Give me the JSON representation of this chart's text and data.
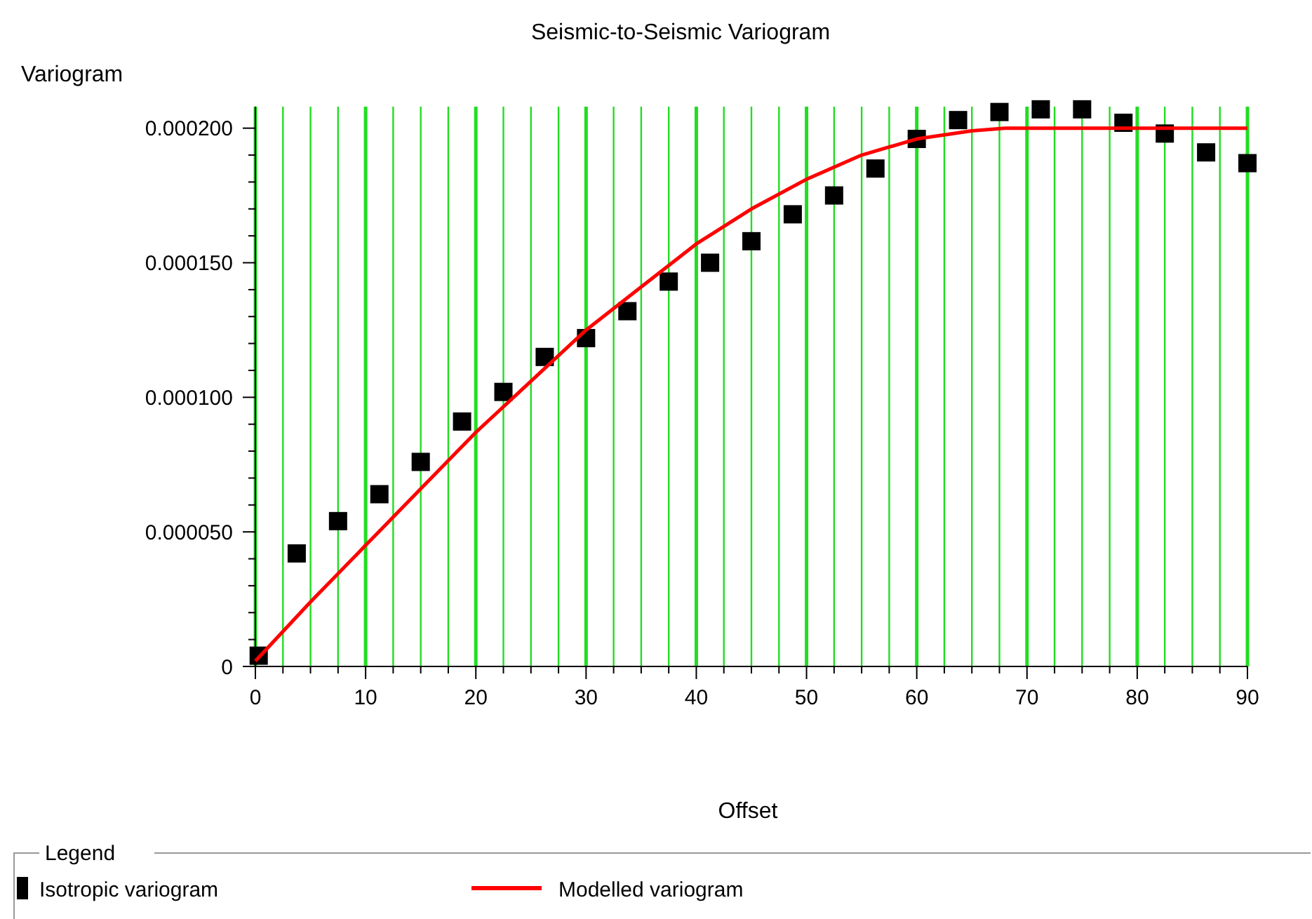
{
  "chart_data": {
    "type": "scatter",
    "title": "Seismic-to-Seismic Variogram",
    "xlabel": "Offset",
    "ylabel": "Variogram",
    "legend_title": "Legend",
    "legend": "bottom",
    "grid": "x",
    "xlim": [
      0,
      90
    ],
    "xticks": [
      0,
      {
        "value": 2.5,
        "label": null
      },
      {
        "value": 5,
        "label": null
      },
      {
        "value": 7.5,
        "label": null
      },
      10,
      {
        "value": 12.5,
        "label": null
      },
      {
        "value": 15,
        "label": null
      },
      {
        "value": 17.5,
        "label": null
      },
      20,
      {
        "value": 22.5,
        "label": null
      },
      {
        "value": 25,
        "label": null
      },
      {
        "value": 27.5,
        "label": null
      },
      30,
      {
        "value": 32.5,
        "label": null
      },
      {
        "value": 35,
        "label": null
      },
      {
        "value": 37.5,
        "label": null
      },
      40,
      {
        "value": 42.5,
        "label": null
      },
      {
        "value": 45,
        "label": null
      },
      {
        "value": 47.5,
        "label": null
      },
      50,
      {
        "value": 52.5,
        "label": null
      },
      {
        "value": 55,
        "label": null
      },
      {
        "value": 57.5,
        "label": null
      },
      60,
      {
        "value": 62.5,
        "label": null
      },
      {
        "value": 65,
        "label": null
      },
      {
        "value": 67.5,
        "label": null
      },
      70,
      {
        "value": 72.5,
        "label": null
      },
      {
        "value": 75,
        "label": null
      },
      {
        "value": 77.5,
        "label": null
      },
      80,
      {
        "value": 82.5,
        "label": null
      },
      {
        "value": 85,
        "label": null
      },
      {
        "value": 87.5,
        "label": null
      },
      90
    ],
    "ylim": [
      0,
      0.000208
    ],
    "yticks": [
      0,
      {
        "value": 1e-05,
        "label": null
      },
      {
        "value": 2e-05,
        "label": null
      },
      {
        "value": 3e-05,
        "label": null
      },
      {
        "value": 4e-05,
        "label": null
      },
      {
        "value": 5e-05,
        "label": "0.000050"
      },
      {
        "value": 6e-05,
        "label": null
      },
      {
        "value": 7e-05,
        "label": null
      },
      {
        "value": 8e-05,
        "label": null
      },
      {
        "value": 9e-05,
        "label": null
      },
      {
        "value": 0.0001,
        "label": "0.000100"
      },
      {
        "value": 0.00011,
        "label": null
      },
      {
        "value": 0.00012,
        "label": null
      },
      {
        "value": 0.00013,
        "label": null
      },
      {
        "value": 0.00014,
        "label": null
      },
      {
        "value": 0.00015,
        "label": "0.000150"
      },
      {
        "value": 0.00016,
        "label": null
      },
      {
        "value": 0.00017,
        "label": null
      },
      {
        "value": 0.00018,
        "label": null
      },
      {
        "value": 0.00019,
        "label": null
      },
      {
        "value": 0.0002,
        "label": "0.000200"
      }
    ],
    "series": [
      {
        "name": "Isotropic variogram",
        "marker": "square",
        "color": "#000000",
        "x": [
          0.3,
          3.75,
          7.5,
          11.25,
          15,
          18.75,
          22.5,
          26.25,
          30,
          33.75,
          37.5,
          41.25,
          45,
          48.75,
          52.5,
          56.25,
          60,
          63.75,
          67.5,
          71.25,
          75,
          78.75,
          82.5,
          86.25,
          90
        ],
        "values": [
          4e-06,
          4.2e-05,
          5.4e-05,
          6.4e-05,
          7.6e-05,
          9.1e-05,
          0.000102,
          0.000115,
          0.000122,
          0.000132,
          0.000143,
          0.00015,
          0.000158,
          0.000168,
          0.000175,
          0.000185,
          0.000196,
          0.000203,
          0.000206,
          0.000207,
          0.000207,
          0.000202,
          0.000198,
          0.000191,
          0.000187
        ]
      },
      {
        "name": "Modelled variogram",
        "type": "line",
        "marker": "none",
        "line_style": "solid",
        "color": "#ff0000",
        "x": [
          0,
          5,
          10,
          15,
          20,
          25,
          30,
          35,
          40,
          45,
          50,
          55,
          60,
          65,
          68,
          90
        ],
        "values": [
          2e-06,
          2.4e-05,
          4.5e-05,
          6.6e-05,
          8.7e-05,
          0.000106,
          0.000125,
          0.000141,
          0.000157,
          0.00017,
          0.000181,
          0.00019,
          0.000196,
          0.000199,
          0.0002,
          0.0002
        ]
      }
    ]
  }
}
